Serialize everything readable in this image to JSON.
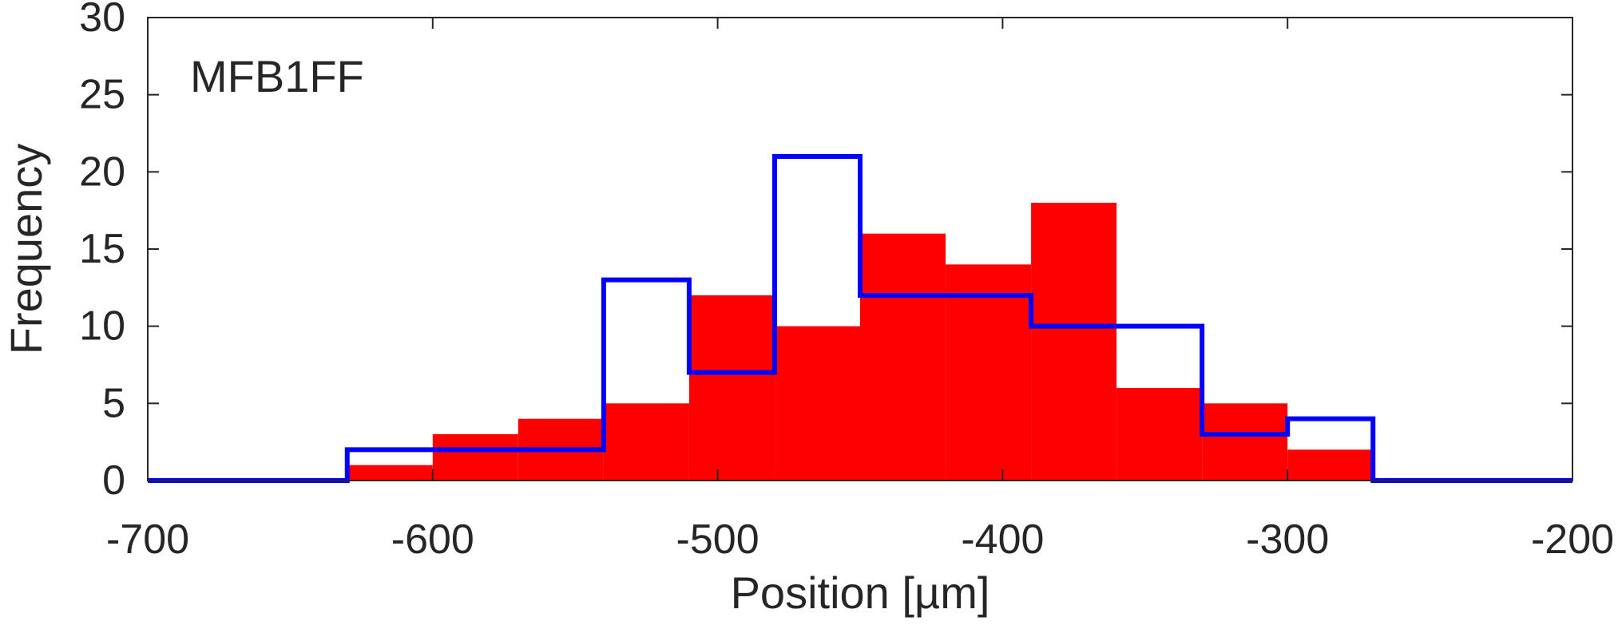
{
  "chart_data": {
    "type": "histogram",
    "annotation": "MFB1FF",
    "xlabel": "Position [µm]",
    "ylabel": "Frequency",
    "xlim": [
      -700,
      -200
    ],
    "ylim": [
      0,
      30
    ],
    "xticks": [
      -700,
      -600,
      -500,
      -400,
      -300,
      -200
    ],
    "yticks": [
      0,
      5,
      10,
      15,
      20,
      25,
      30
    ],
    "xtick_labels": [
      "-700",
      "-600",
      "-500",
      "-400",
      "-300",
      "-200"
    ],
    "ytick_labels": [
      "0",
      "5",
      "10",
      "15",
      "20",
      "25",
      "30"
    ],
    "grid": false,
    "series": [
      {
        "style": "filled-bars",
        "color": "#ff0000",
        "bin_edges": [
          -700,
          -630,
          -600,
          -570,
          -540,
          -510,
          -480,
          -450,
          -420,
          -390,
          -360,
          -330,
          -300,
          -270,
          -200
        ],
        "values": [
          0,
          1,
          3,
          4,
          5,
          12,
          10,
          16,
          14,
          18,
          6,
          5,
          2,
          0
        ]
      },
      {
        "style": "stairs-outline",
        "color": "#0000ff",
        "bin_edges": [
          -700,
          -630,
          -540,
          -510,
          -480,
          -450,
          -390,
          -330,
          -300,
          -270,
          -200
        ],
        "values": [
          0,
          2,
          13,
          7,
          21,
          12,
          10,
          3,
          4,
          0
        ]
      }
    ]
  }
}
